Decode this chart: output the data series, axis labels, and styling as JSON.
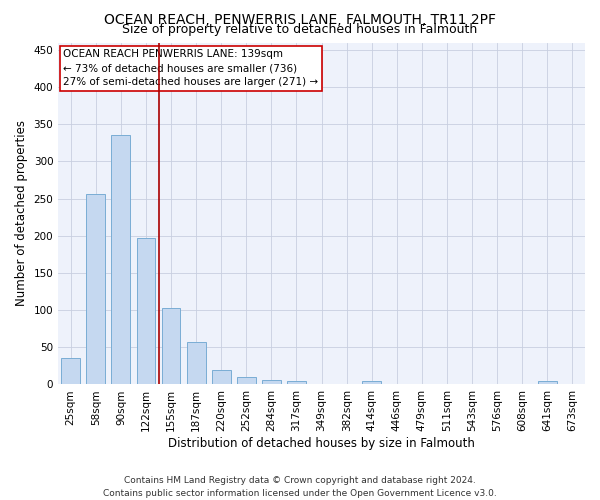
{
  "title": "OCEAN REACH, PENWERRIS LANE, FALMOUTH, TR11 2PF",
  "subtitle": "Size of property relative to detached houses in Falmouth",
  "xlabel": "Distribution of detached houses by size in Falmouth",
  "ylabel": "Number of detached properties",
  "categories": [
    "25sqm",
    "58sqm",
    "90sqm",
    "122sqm",
    "155sqm",
    "187sqm",
    "220sqm",
    "252sqm",
    "284sqm",
    "317sqm",
    "349sqm",
    "382sqm",
    "414sqm",
    "446sqm",
    "479sqm",
    "511sqm",
    "543sqm",
    "576sqm",
    "608sqm",
    "641sqm",
    "673sqm"
  ],
  "values": [
    35,
    256,
    336,
    197,
    103,
    57,
    19,
    10,
    6,
    4,
    0,
    0,
    5,
    0,
    0,
    0,
    0,
    0,
    0,
    5,
    0
  ],
  "bar_color": "#c5d8f0",
  "bar_edge_color": "#7aadd4",
  "marker_line_color": "#aa0000",
  "annotation_line1": "OCEAN REACH PENWERRIS LANE: 139sqm",
  "annotation_line2": "← 73% of detached houses are smaller (736)",
  "annotation_line3": "27% of semi-detached houses are larger (271) →",
  "annotation_box_color": "#ffffff",
  "annotation_box_edge": "#cc0000",
  "footer": "Contains HM Land Registry data © Crown copyright and database right 2024.\nContains public sector information licensed under the Open Government Licence v3.0.",
  "ylim": [
    0,
    460
  ],
  "background_color": "#eef2fb",
  "grid_color": "#c8cfe0",
  "title_fontsize": 10,
  "subtitle_fontsize": 9,
  "axis_label_fontsize": 8.5,
  "tick_fontsize": 7.5,
  "footer_fontsize": 6.5,
  "annotation_fontsize": 7.5
}
